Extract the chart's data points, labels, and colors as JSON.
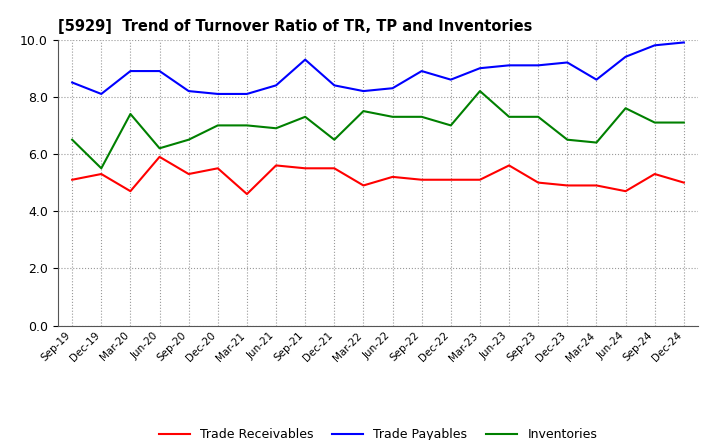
{
  "title": "[5929]  Trend of Turnover Ratio of TR, TP and Inventories",
  "x_labels": [
    "Sep-19",
    "Dec-19",
    "Mar-20",
    "Jun-20",
    "Sep-20",
    "Dec-20",
    "Mar-21",
    "Jun-21",
    "Sep-21",
    "Dec-21",
    "Mar-22",
    "Jun-22",
    "Sep-22",
    "Dec-22",
    "Mar-23",
    "Jun-23",
    "Sep-23",
    "Dec-23",
    "Mar-24",
    "Jun-24",
    "Sep-24",
    "Dec-24"
  ],
  "trade_receivables": [
    5.1,
    5.3,
    4.7,
    5.9,
    5.3,
    5.5,
    4.6,
    5.6,
    5.5,
    5.5,
    4.9,
    5.2,
    5.1,
    5.1,
    5.1,
    5.6,
    5.0,
    4.9,
    4.9,
    4.7,
    5.3,
    5.0
  ],
  "trade_payables": [
    8.5,
    8.1,
    8.9,
    8.9,
    8.2,
    8.1,
    8.1,
    8.4,
    9.3,
    8.4,
    8.2,
    8.3,
    8.9,
    8.6,
    9.0,
    9.1,
    9.1,
    9.2,
    8.6,
    9.4,
    9.8,
    9.9
  ],
  "inventories": [
    6.5,
    5.5,
    7.4,
    6.2,
    6.5,
    7.0,
    7.0,
    6.9,
    7.3,
    6.5,
    7.5,
    7.3,
    7.3,
    7.0,
    8.2,
    7.3,
    7.3,
    6.5,
    6.4,
    7.6,
    7.1,
    7.1
  ],
  "color_tr": "#ff0000",
  "color_tp": "#0000ff",
  "color_inv": "#008000",
  "ylim": [
    0.0,
    10.0
  ],
  "yticks": [
    0.0,
    2.0,
    4.0,
    6.0,
    8.0,
    10.0
  ],
  "legend_labels": [
    "Trade Receivables",
    "Trade Payables",
    "Inventories"
  ],
  "background_color": "#ffffff",
  "grid_color": "#999999"
}
